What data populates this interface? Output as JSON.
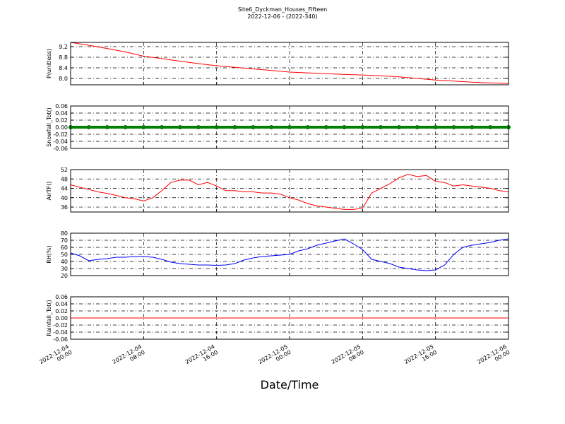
{
  "chart_data": [
    {
      "type": "line",
      "title": "Site6_Dyckman_Houses_Fifteen",
      "subtitle": "2022-12-06 - (2022-340)",
      "ylabel": "P(unitless)",
      "color": "#ff0000",
      "x": [
        "2022-12-04 00:00",
        "2022-12-04 02:00",
        "2022-12-04 04:00",
        "2022-12-04 06:00",
        "2022-12-04 08:00",
        "2022-12-04 10:00",
        "2022-12-04 12:00",
        "2022-12-04 14:00",
        "2022-12-04 16:00",
        "2022-12-04 18:00",
        "2022-12-04 20:00",
        "2022-12-04 22:00",
        "2022-12-05 00:00",
        "2022-12-05 02:00",
        "2022-12-05 04:00",
        "2022-12-05 06:00",
        "2022-12-05 08:00",
        "2022-12-05 10:00",
        "2022-12-05 12:00",
        "2022-12-05 14:00",
        "2022-12-05 16:00",
        "2022-12-05 18:00",
        "2022-12-05 20:00",
        "2022-12-05 22:00",
        "2022-12-06 00:00"
      ],
      "values": [
        9.36,
        9.25,
        9.13,
        9.0,
        8.84,
        8.75,
        8.65,
        8.56,
        8.48,
        8.42,
        8.36,
        8.3,
        8.24,
        8.21,
        8.18,
        8.15,
        8.13,
        8.1,
        8.06,
        8.0,
        7.94,
        7.9,
        7.86,
        7.83,
        7.81
      ],
      "xlim": [
        "2022-12-04 00:00",
        "2022-12-06 00:00"
      ],
      "xticks": [
        "2022-12-04 00:00",
        "2022-12-04 08:00",
        "2022-12-04 16:00",
        "2022-12-05 00:00",
        "2022-12-05 08:00",
        "2022-12-05 16:00",
        "2022-12-06 00:00"
      ],
      "ylim": [
        7.76,
        9.36
      ],
      "yticks": [
        {
          "value": 8,
          "label": "8.0"
        },
        8.4,
        8.8,
        9.2
      ],
      "grid": true
    },
    {
      "type": "scatter",
      "ylabel": "Snowfall_Tot()",
      "color": "#008000",
      "x": [
        "2022-12-04 00:00",
        "2022-12-04 02:00",
        "2022-12-04 04:00",
        "2022-12-04 06:00",
        "2022-12-04 08:00",
        "2022-12-04 10:00",
        "2022-12-04 12:00",
        "2022-12-04 14:00",
        "2022-12-04 16:00",
        "2022-12-04 18:00",
        "2022-12-04 20:00",
        "2022-12-04 22:00",
        "2022-12-05 00:00",
        "2022-12-05 02:00",
        "2022-12-05 04:00",
        "2022-12-05 06:00",
        "2022-12-05 08:00",
        "2022-12-05 10:00",
        "2022-12-05 12:00",
        "2022-12-05 14:00",
        "2022-12-05 16:00",
        "2022-12-05 18:00",
        "2022-12-05 20:00",
        "2022-12-05 22:00",
        "2022-12-06 00:00"
      ],
      "values": [
        0,
        0,
        0,
        0,
        0,
        0,
        0,
        0,
        0,
        0,
        0,
        0,
        0,
        0,
        0,
        0,
        0,
        0,
        0,
        0,
        0,
        0,
        0,
        0,
        0
      ],
      "xlim": [
        "2022-12-04 00:00",
        "2022-12-06 00:00"
      ],
      "xticks": [
        "2022-12-04 00:00",
        "2022-12-04 08:00",
        "2022-12-04 16:00",
        "2022-12-05 00:00",
        "2022-12-05 08:00",
        "2022-12-05 16:00",
        "2022-12-06 00:00"
      ],
      "ylim": [
        -0.06,
        0.06
      ],
      "yticks": [
        -0.06,
        -0.04,
        -0.02,
        {
          "value": 0,
          "label": "0.00"
        },
        0.02,
        0.04,
        0.06
      ],
      "grid": true
    },
    {
      "type": "line",
      "ylabel": "AirTF()",
      "color": "#ff0000",
      "x": [
        "2022-12-04 00:00",
        "2022-12-04 01:00",
        "2022-12-04 02:00",
        "2022-12-04 03:00",
        "2022-12-04 04:00",
        "2022-12-04 05:00",
        "2022-12-04 06:00",
        "2022-12-04 07:00",
        "2022-12-04 08:00",
        "2022-12-04 09:00",
        "2022-12-04 10:00",
        "2022-12-04 11:00",
        "2022-12-04 12:00",
        "2022-12-04 13:00",
        "2022-12-04 14:00",
        "2022-12-04 15:00",
        "2022-12-04 16:00",
        "2022-12-04 17:00",
        "2022-12-04 18:00",
        "2022-12-04 19:00",
        "2022-12-04 20:00",
        "2022-12-04 21:00",
        "2022-12-04 22:00",
        "2022-12-04 23:00",
        "2022-12-05 00:00",
        "2022-12-05 01:00",
        "2022-12-05 02:00",
        "2022-12-05 03:00",
        "2022-12-05 04:00",
        "2022-12-05 05:00",
        "2022-12-05 06:00",
        "2022-12-05 07:00",
        "2022-12-05 08:00",
        "2022-12-05 09:00",
        "2022-12-05 10:00",
        "2022-12-05 11:00",
        "2022-12-05 12:00",
        "2022-12-05 13:00",
        "2022-12-05 14:00",
        "2022-12-05 15:00",
        "2022-12-05 16:00",
        "2022-12-05 17:00",
        "2022-12-05 18:00",
        "2022-12-05 19:00",
        "2022-12-05 20:00",
        "2022-12-05 21:00",
        "2022-12-05 22:00",
        "2022-12-05 23:00",
        "2022-12-06 00:00"
      ],
      "values": [
        45.5,
        44.5,
        43.5,
        42.5,
        41.8,
        41,
        40,
        39.5,
        38.6,
        40,
        43,
        46.5,
        47.5,
        47.5,
        45.5,
        46.5,
        45,
        43,
        43,
        42.5,
        42.5,
        42,
        42,
        41.5,
        40,
        39,
        37.5,
        36.5,
        36,
        35.5,
        35,
        35,
        35.5,
        42,
        44,
        46,
        48.5,
        50,
        49,
        49.5,
        47,
        46.5,
        45,
        45.5,
        45,
        44.5,
        44,
        43,
        42.5
      ],
      "xlim": [
        "2022-12-04 00:00",
        "2022-12-06 00:00"
      ],
      "xticks": [
        "2022-12-04 00:00",
        "2022-12-04 08:00",
        "2022-12-04 16:00",
        "2022-12-05 00:00",
        "2022-12-05 08:00",
        "2022-12-05 16:00",
        "2022-12-06 00:00"
      ],
      "ylim": [
        33.9,
        52
      ],
      "yticks": [
        36,
        40,
        44,
        48,
        52
      ],
      "grid": true
    },
    {
      "type": "line",
      "ylabel": "RH(%)",
      "color": "#0000ff",
      "x": [
        "2022-12-04 00:00",
        "2022-12-04 01:00",
        "2022-12-04 02:00",
        "2022-12-04 03:00",
        "2022-12-04 04:00",
        "2022-12-04 05:00",
        "2022-12-04 06:00",
        "2022-12-04 07:00",
        "2022-12-04 08:00",
        "2022-12-04 09:00",
        "2022-12-04 10:00",
        "2022-12-04 11:00",
        "2022-12-04 12:00",
        "2022-12-04 13:00",
        "2022-12-04 14:00",
        "2022-12-04 15:00",
        "2022-12-04 16:00",
        "2022-12-04 17:00",
        "2022-12-04 18:00",
        "2022-12-04 19:00",
        "2022-12-04 20:00",
        "2022-12-04 21:00",
        "2022-12-04 22:00",
        "2022-12-04 23:00",
        "2022-12-05 00:00",
        "2022-12-05 01:00",
        "2022-12-05 02:00",
        "2022-12-05 03:00",
        "2022-12-05 04:00",
        "2022-12-05 05:00",
        "2022-12-05 06:00",
        "2022-12-05 07:00",
        "2022-12-05 08:00",
        "2022-12-05 09:00",
        "2022-12-05 10:00",
        "2022-12-05 11:00",
        "2022-12-05 12:00",
        "2022-12-05 13:00",
        "2022-12-05 14:00",
        "2022-12-05 15:00",
        "2022-12-05 16:00",
        "2022-12-05 17:00",
        "2022-12-05 18:00",
        "2022-12-05 19:00",
        "2022-12-05 20:00",
        "2022-12-05 21:00",
        "2022-12-05 22:00",
        "2022-12-05 23:00",
        "2022-12-06 00:00"
      ],
      "values": [
        52,
        48,
        41,
        43,
        44,
        46,
        46,
        47,
        47,
        46,
        43,
        39,
        37,
        36,
        35,
        35,
        34.5,
        35,
        37,
        42,
        45,
        47,
        48,
        49,
        50,
        55,
        58,
        63,
        66,
        69,
        72,
        65,
        57,
        43,
        40,
        37,
        32,
        30,
        28,
        27,
        28,
        35,
        50,
        60,
        63,
        65,
        67,
        70,
        72
      ],
      "xlim": [
        "2022-12-04 00:00",
        "2022-12-06 00:00"
      ],
      "xticks": [
        "2022-12-04 00:00",
        "2022-12-04 08:00",
        "2022-12-04 16:00",
        "2022-12-05 00:00",
        "2022-12-05 08:00",
        "2022-12-05 16:00",
        "2022-12-06 00:00"
      ],
      "ylim": [
        20,
        80
      ],
      "yticks": [
        20,
        30,
        40,
        50,
        60,
        70,
        80
      ],
      "grid": true
    },
    {
      "type": "line",
      "ylabel": "Rainfall_Tot()",
      "xlabel": "Date/Time",
      "color": "#ff0000",
      "x": [
        "2022-12-04 00:00",
        "2022-12-04 02:00",
        "2022-12-04 04:00",
        "2022-12-04 06:00",
        "2022-12-04 08:00",
        "2022-12-04 10:00",
        "2022-12-04 12:00",
        "2022-12-04 14:00",
        "2022-12-04 16:00",
        "2022-12-04 18:00",
        "2022-12-04 20:00",
        "2022-12-04 22:00",
        "2022-12-05 00:00",
        "2022-12-05 02:00",
        "2022-12-05 04:00",
        "2022-12-05 06:00",
        "2022-12-05 08:00",
        "2022-12-05 10:00",
        "2022-12-05 12:00",
        "2022-12-05 14:00",
        "2022-12-05 16:00",
        "2022-12-05 18:00",
        "2022-12-05 20:00",
        "2022-12-05 22:00",
        "2022-12-06 00:00"
      ],
      "values": [
        0,
        0,
        0,
        0,
        0,
        0,
        0,
        0,
        0,
        0,
        0,
        0,
        0,
        0,
        0,
        0,
        0,
        0,
        0,
        0,
        0,
        0,
        0,
        0,
        0
      ],
      "xlim": [
        "2022-12-04 00:00",
        "2022-12-06 00:00"
      ],
      "xticks": [
        "2022-12-04 00:00",
        "2022-12-04 08:00",
        "2022-12-04 16:00",
        "2022-12-05 00:00",
        "2022-12-05 08:00",
        "2022-12-05 16:00",
        "2022-12-06 00:00"
      ],
      "ylim": [
        -0.06,
        0.06
      ],
      "yticks": [
        -0.06,
        -0.04,
        -0.02,
        {
          "value": 0,
          "label": "0.00"
        },
        0.02,
        0.04,
        0.06
      ],
      "grid": true
    }
  ]
}
